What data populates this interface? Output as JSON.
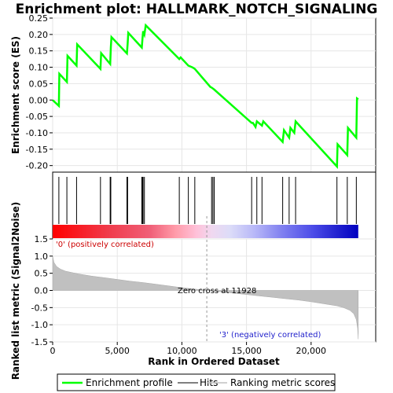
{
  "chart_data": [
    {
      "type": "line",
      "title": "Enrichment plot: HALLMARK_NOTCH_SIGNALING",
      "ylabel": "Enrichment score (ES)",
      "ylim": [
        -0.22,
        0.25
      ],
      "yticks": [
        "0.25",
        "0.20",
        "0.15",
        "0.10",
        "0.05",
        "0.00",
        "-0.05",
        "-0.10",
        "-0.15",
        "-0.20"
      ],
      "ytick_values": [
        0.25,
        0.2,
        0.15,
        0.1,
        0.05,
        0.0,
        -0.05,
        -0.1,
        -0.15,
        -0.2
      ],
      "xlim": [
        0,
        25000
      ],
      "grid": true,
      "series": [
        {
          "name": "Enrichment profile",
          "color": "#00ff00",
          "points": [
            [
              0,
              0.0
            ],
            [
              480,
              -0.018
            ],
            [
              520,
              0.08
            ],
            [
              1100,
              0.055
            ],
            [
              1150,
              0.135
            ],
            [
              1850,
              0.105
            ],
            [
              1900,
              0.17
            ],
            [
              3700,
              0.095
            ],
            [
              3750,
              0.143
            ],
            [
              4450,
              0.11
            ],
            [
              4500,
              0.16
            ],
            [
              4550,
              0.192
            ],
            [
              5750,
              0.142
            ],
            [
              5800,
              0.172
            ],
            [
              5850,
              0.205
            ],
            [
              6900,
              0.16
            ],
            [
              6950,
              0.188
            ],
            [
              7000,
              0.21
            ],
            [
              7100,
              0.2
            ],
            [
              7200,
              0.228
            ],
            [
              9800,
              0.125
            ],
            [
              9900,
              0.13
            ],
            [
              10500,
              0.105
            ],
            [
              10800,
              0.1
            ],
            [
              11000,
              0.095
            ],
            [
              12200,
              0.04
            ],
            [
              12300,
              0.038
            ],
            [
              12500,
              0.032
            ],
            [
              15400,
              -0.07
            ],
            [
              15500,
              -0.07
            ],
            [
              15700,
              -0.082
            ],
            [
              15800,
              -0.065
            ],
            [
              16200,
              -0.078
            ],
            [
              16300,
              -0.065
            ],
            [
              17800,
              -0.128
            ],
            [
              17900,
              -0.092
            ],
            [
              18300,
              -0.115
            ],
            [
              18400,
              -0.085
            ],
            [
              18700,
              -0.1
            ],
            [
              18800,
              -0.065
            ],
            [
              22000,
              -0.203
            ],
            [
              22050,
              -0.135
            ],
            [
              22800,
              -0.168
            ],
            [
              22850,
              -0.085
            ],
            [
              23500,
              -0.115
            ],
            [
              23550,
              0.005
            ],
            [
              23650,
              0.002
            ]
          ]
        }
      ],
      "hits": [
        480,
        1100,
        1850,
        3700,
        4450,
        4500,
        5750,
        5800,
        6900,
        6950,
        7000,
        7100,
        9800,
        10500,
        11000,
        12300,
        12400,
        12500,
        15400,
        15800,
        16200,
        17800,
        18300,
        18800,
        22000,
        22800,
        23500
      ]
    },
    {
      "type": "area",
      "ylabel": "Ranked list metric (Signal2Noise)",
      "xlabel": "Rank in Ordered Dataset",
      "ylim": [
        -1.5,
        1.5
      ],
      "xlim": [
        0,
        25000
      ],
      "yticks": [
        "1.5",
        "1.0",
        "0.5",
        "0.0",
        "-0.5",
        "-1.0",
        "-1.5"
      ],
      "ytick_values": [
        1.5,
        1.0,
        0.5,
        0.0,
        -0.5,
        -1.0,
        -1.5
      ],
      "xticks": [
        "0",
        "5,000",
        "10,000",
        "15,000",
        "20,000"
      ],
      "xtick_values": [
        0,
        5000,
        10000,
        15000,
        20000
      ],
      "grid": true,
      "zero_cross": 11928,
      "zero_cross_label": "Zero cross at 11928",
      "positive_label": "'0' (positively correlated)",
      "negative_label": "'3' (negatively correlated)",
      "series": [
        {
          "name": "Ranking metric scores",
          "color": "#c0c0c0",
          "points": [
            [
              0,
              1.0
            ],
            [
              100,
              0.82
            ],
            [
              300,
              0.7
            ],
            [
              600,
              0.62
            ],
            [
              1000,
              0.56
            ],
            [
              2000,
              0.48
            ],
            [
              3000,
              0.42
            ],
            [
              4000,
              0.37
            ],
            [
              5000,
              0.32
            ],
            [
              6000,
              0.27
            ],
            [
              7000,
              0.23
            ],
            [
              8000,
              0.18
            ],
            [
              9000,
              0.13
            ],
            [
              10000,
              0.08
            ],
            [
              11000,
              0.04
            ],
            [
              11928,
              0.0
            ],
            [
              13000,
              -0.04
            ],
            [
              14000,
              -0.08
            ],
            [
              15000,
              -0.12
            ],
            [
              16000,
              -0.16
            ],
            [
              17000,
              -0.2
            ],
            [
              18000,
              -0.24
            ],
            [
              19000,
              -0.28
            ],
            [
              20000,
              -0.33
            ],
            [
              21000,
              -0.39
            ],
            [
              22000,
              -0.45
            ],
            [
              22500,
              -0.5
            ],
            [
              23000,
              -0.58
            ],
            [
              23300,
              -0.68
            ],
            [
              23500,
              -0.85
            ],
            [
              23600,
              -1.1
            ],
            [
              23650,
              -1.42
            ]
          ]
        }
      ]
    }
  ],
  "heatmap": {
    "total": 23650,
    "stops": [
      {
        "at": 0.0,
        "color": "#ff0000"
      },
      {
        "at": 0.18,
        "color": "#f03a4a"
      },
      {
        "at": 0.32,
        "color": "#f06078"
      },
      {
        "at": 0.4,
        "color": "#ff9aa8"
      },
      {
        "at": 0.47,
        "color": "#ffc0d8"
      },
      {
        "at": 0.52,
        "color": "#f0d8f0"
      },
      {
        "at": 0.58,
        "color": "#dcdcf8"
      },
      {
        "at": 0.66,
        "color": "#b8b8f8"
      },
      {
        "at": 0.75,
        "color": "#8080f0"
      },
      {
        "at": 0.85,
        "color": "#4c4ce8"
      },
      {
        "at": 0.93,
        "color": "#2222d0"
      },
      {
        "at": 1.0,
        "color": "#0000c0"
      }
    ]
  },
  "legend": {
    "items": [
      {
        "label": "Enrichment profile",
        "color": "#00ff00"
      },
      {
        "label": "Hits",
        "color": "#000000"
      },
      {
        "label": "Ranking metric scores",
        "color": "#c0c0c0"
      }
    ]
  }
}
